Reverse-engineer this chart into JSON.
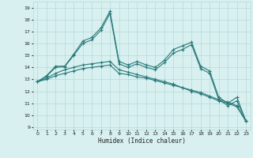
{
  "title": "",
  "xlabel": "Humidex (Indice chaleur)",
  "bg_color": "#d8f0f0",
  "grid_color": "#b8d8d8",
  "line_color": "#2a7a7a",
  "xlim": [
    -0.5,
    23.5
  ],
  "ylim": [
    8.8,
    19.5
  ],
  "yticks": [
    9,
    10,
    11,
    12,
    13,
    14,
    15,
    16,
    17,
    18,
    19
  ],
  "xticks": [
    0,
    1,
    2,
    3,
    4,
    5,
    6,
    7,
    8,
    9,
    10,
    11,
    12,
    13,
    14,
    15,
    16,
    17,
    18,
    19,
    20,
    21,
    22,
    23
  ],
  "line1_x": [
    0,
    1,
    2,
    3,
    4,
    5,
    6,
    7,
    8,
    9,
    10,
    11,
    12,
    13,
    14,
    15,
    16,
    17,
    18,
    19,
    20,
    21,
    22,
    23
  ],
  "line1_y": [
    12.8,
    13.3,
    14.1,
    14.1,
    15.1,
    16.2,
    16.5,
    17.3,
    18.7,
    14.5,
    14.2,
    14.5,
    14.2,
    14.0,
    14.6,
    15.5,
    15.8,
    16.1,
    14.1,
    13.7,
    11.5,
    11.0,
    11.5,
    9.5
  ],
  "line2_x": [
    0,
    1,
    2,
    3,
    4,
    5,
    6,
    7,
    8,
    9,
    10,
    11,
    12,
    13,
    14,
    15,
    16,
    17,
    18,
    19,
    20,
    21,
    22,
    23
  ],
  "line2_y": [
    12.8,
    13.0,
    13.3,
    13.5,
    13.7,
    13.9,
    14.0,
    14.1,
    14.2,
    13.5,
    13.4,
    13.2,
    13.1,
    12.9,
    12.7,
    12.5,
    12.3,
    12.1,
    11.9,
    11.6,
    11.3,
    11.1,
    10.8,
    9.5
  ],
  "line3_x": [
    0,
    1,
    2,
    3,
    4,
    5,
    6,
    7,
    8,
    9,
    10,
    11,
    12,
    13,
    14,
    15,
    16,
    17,
    18,
    19,
    20,
    21,
    22,
    23
  ],
  "line3_y": [
    12.8,
    13.1,
    13.5,
    13.8,
    14.0,
    14.2,
    14.3,
    14.4,
    14.5,
    13.8,
    13.6,
    13.4,
    13.2,
    13.0,
    12.8,
    12.6,
    12.3,
    12.0,
    11.8,
    11.5,
    11.2,
    11.0,
    10.7,
    9.5
  ],
  "line4_x": [
    0,
    1,
    2,
    3,
    4,
    5,
    6,
    7,
    8,
    9,
    10,
    11,
    12,
    13,
    14,
    15,
    16,
    17,
    18,
    19,
    20,
    21,
    22,
    23
  ],
  "line4_y": [
    12.8,
    13.25,
    14.0,
    14.05,
    15.0,
    16.0,
    16.3,
    17.1,
    18.5,
    14.3,
    14.0,
    14.3,
    14.0,
    13.8,
    14.4,
    15.2,
    15.5,
    15.9,
    13.9,
    13.5,
    11.3,
    10.8,
    11.2,
    9.5
  ]
}
